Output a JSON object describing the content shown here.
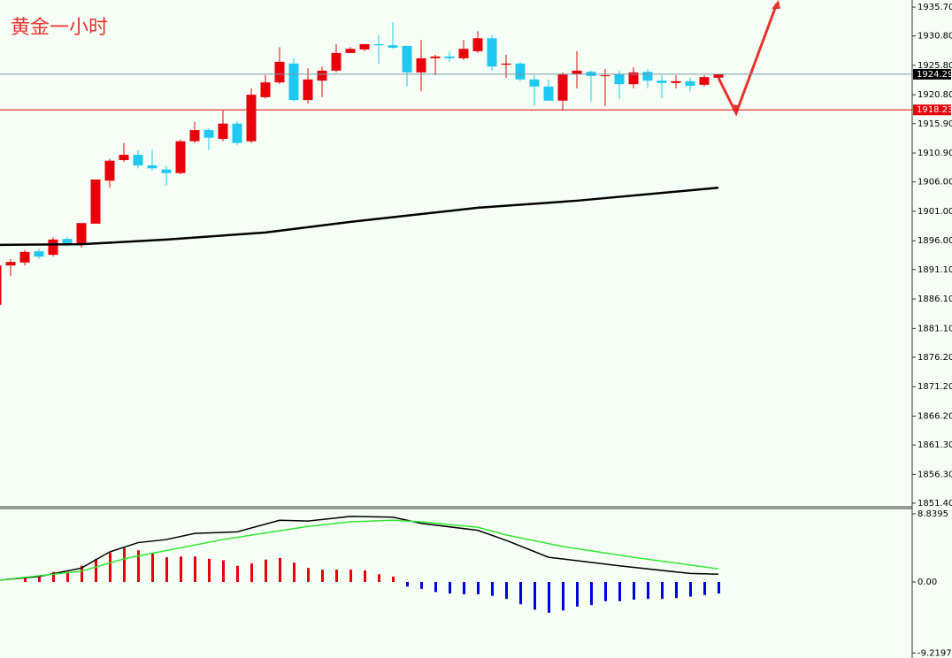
{
  "chart_data": [
    {
      "type": "candlestick",
      "title": "黄金一小时",
      "open": [
        1885.1,
        1891.8,
        1892.3,
        1894.2,
        1893.6,
        1896.3,
        1895.4,
        1898.9,
        1906.2,
        1909.7,
        1910.6,
        1908.8,
        1908.1,
        1907.5,
        1912.9,
        1914.8,
        1913.3,
        1915.9,
        1912.9,
        1920.4,
        1922.9,
        1926.1,
        1919.9,
        1923.2,
        1924.9,
        1927.9,
        1928.5,
        1929.4,
        1929.2,
        1929.1,
        1924.6,
        1927.0,
        1927.3,
        1927.0,
        1928.2,
        1930.4,
        1925.9,
        1926.1,
        1923.4,
        1922.2,
        1919.8,
        1924.3,
        1924.7,
        1924.0,
        1924.3,
        1922.6,
        1924.7,
        1923.2,
        1922.8,
        1923.1,
        1922.5,
        1923.7
      ],
      "high": [
        1891.8,
        1892.9,
        1894.4,
        1894.7,
        1896.6,
        1896.6,
        1899.0,
        1906.4,
        1909.9,
        1912.6,
        1911.4,
        1911.4,
        1908.7,
        1913.2,
        1916.2,
        1915.1,
        1918.1,
        1916.3,
        1921.9,
        1924.1,
        1928.9,
        1927.1,
        1925.3,
        1925.6,
        1929.4,
        1928.9,
        1929.4,
        1930.9,
        1933.1,
        1929.1,
        1930.1,
        1927.6,
        1928.2,
        1930.1,
        1931.6,
        1930.9,
        1927.6,
        1926.4,
        1924.1,
        1923.4,
        1924.6,
        1928.2,
        1924.9,
        1925.2,
        1924.9,
        1925.5,
        1925.2,
        1924.1,
        1924.1,
        1923.7,
        1924.1,
        1924.3
      ],
      "low": [
        1885.1,
        1890.0,
        1891.8,
        1892.9,
        1893.3,
        1895.1,
        1894.8,
        1898.9,
        1905.0,
        1909.4,
        1908.3,
        1907.9,
        1905.3,
        1907.3,
        1912.6,
        1911.4,
        1912.9,
        1912.3,
        1912.6,
        1920.1,
        1922.6,
        1919.6,
        1919.3,
        1920.4,
        1924.6,
        1927.9,
        1928.2,
        1926.1,
        1928.6,
        1922.2,
        1921.4,
        1924.1,
        1926.4,
        1926.7,
        1927.9,
        1924.9,
        1923.7,
        1923.1,
        1918.9,
        1919.8,
        1918.1,
        1921.9,
        1919.6,
        1918.9,
        1920.1,
        1921.9,
        1921.9,
        1920.2,
        1921.9,
        1921.4,
        1922.2,
        1923.7
      ],
      "close": [
        1891.8,
        1892.4,
        1894.1,
        1893.3,
        1896.2,
        1895.6,
        1899.0,
        1906.4,
        1909.6,
        1910.6,
        1908.8,
        1908.3,
        1907.5,
        1912.9,
        1914.8,
        1913.5,
        1915.9,
        1912.6,
        1920.8,
        1922.9,
        1926.4,
        1919.9,
        1923.4,
        1924.9,
        1927.9,
        1928.6,
        1929.4,
        1929.2,
        1928.8,
        1924.6,
        1927.0,
        1927.3,
        1927.0,
        1928.6,
        1930.4,
        1925.6,
        1926.1,
        1923.4,
        1922.2,
        1919.8,
        1924.3,
        1924.9,
        1924.0,
        1924.1,
        1922.6,
        1924.6,
        1923.2,
        1922.8,
        1923.1,
        1922.3,
        1923.8,
        1924.3
      ],
      "up_color": "#e8000b",
      "down_color": "#1ec8f0",
      "moving_average": {
        "color": "#000000",
        "x": [
          0,
          6,
          12,
          19,
          25,
          34,
          41,
          51
        ],
        "values": [
          1895.3,
          1895.4,
          1896.2,
          1897.4,
          1899.2,
          1901.6,
          1902.8,
          1905.0
        ]
      },
      "price_lines": [
        {
          "value": 1924.29,
          "color": "#7a96a8"
        },
        {
          "value": 1918.23,
          "color": "#e8000b"
        }
      ],
      "ylim": [
        1850.95,
        1936.9
      ],
      "yticks": [
        {
          "value": 1935.7,
          "label": "1935.70"
        },
        {
          "value": 1930.8,
          "label": "1930.80"
        },
        {
          "value": 1925.8,
          "label": "1925.80"
        },
        {
          "value": 1920.8,
          "label": "1920.80"
        },
        {
          "value": 1915.9,
          "label": "1915.90"
        },
        {
          "value": 1910.9,
          "label": "1910.90"
        },
        {
          "value": 1906.0,
          "label": "1906.00"
        },
        {
          "value": 1901.0,
          "label": "1901.00"
        },
        {
          "value": 1896.0,
          "label": "1896.00"
        },
        {
          "value": 1891.1,
          "label": "1891.10"
        },
        {
          "value": 1886.1,
          "label": "1886.10"
        },
        {
          "value": 1881.1,
          "label": "1881.10"
        },
        {
          "value": 1876.2,
          "label": "1876.20"
        },
        {
          "value": 1871.2,
          "label": "1871.20"
        },
        {
          "value": 1866.2,
          "label": "1866.20"
        },
        {
          "value": 1861.3,
          "label": "1861.30"
        },
        {
          "value": 1856.3,
          "label": "1856.30"
        },
        {
          "value": 1851.4,
          "label": "1851.40"
        }
      ]
    },
    {
      "type": "macd",
      "histogram": {
        "up_color": "#e8000b",
        "down_color": "#0000e0",
        "values": [
          null,
          null,
          0.6,
          0.7,
          1.3,
          1.3,
          2.1,
          3.0,
          3.8,
          4.4,
          4.1,
          3.7,
          3.2,
          3.3,
          3.3,
          3.0,
          2.8,
          2.1,
          2.4,
          2.9,
          3.1,
          2.5,
          1.8,
          1.6,
          1.6,
          1.6,
          1.5,
          1.0,
          0.7,
          -0.6,
          -0.9,
          -1.3,
          -1.5,
          -1.6,
          -1.6,
          -1.8,
          -2.2,
          -2.9,
          -3.6,
          -4.0,
          -3.7,
          -3.2,
          -3.0,
          -2.5,
          -2.5,
          -2.3,
          -2.2,
          -2.2,
          -2.1,
          -1.9,
          -1.7,
          -1.5
        ]
      },
      "series": [
        {
          "color": "#000000",
          "x": [
            0,
            3,
            6,
            8,
            10,
            12,
            14,
            17,
            19,
            20,
            22,
            25,
            28,
            30,
            34,
            36,
            39,
            44,
            49,
            51
          ],
          "values": [
            0.2,
            0.7,
            1.8,
            3.9,
            5.1,
            5.5,
            6.3,
            6.5,
            7.5,
            8.0,
            7.9,
            8.5,
            8.4,
            7.6,
            6.7,
            5.4,
            3.2,
            2.1,
            1.1,
            1.0
          ]
        },
        {
          "color": "#32e632",
          "x": [
            0,
            6,
            9,
            16,
            22,
            25,
            28,
            30,
            34,
            36,
            40,
            45,
            49,
            51
          ],
          "values": [
            0.2,
            1.4,
            3.0,
            5.5,
            7.2,
            7.8,
            8.0,
            7.8,
            7.1,
            6.1,
            4.6,
            3.2,
            2.2,
            1.7
          ]
        }
      ],
      "ylim": [
        -9.87,
        9.41
      ],
      "yticks": [
        8.8395,
        {
          "value": 0,
          "label": "0.00"
        },
        -9.2197
      ]
    }
  ]
}
